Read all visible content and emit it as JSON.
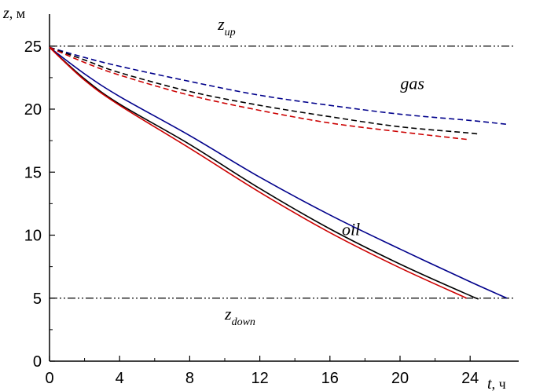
{
  "chart_data": {
    "type": "line",
    "xlabel": "t",
    "xunit": ", ч",
    "ylabel": "z",
    "yunit": ", м",
    "xlim": [
      0,
      26
    ],
    "ylim": [
      0,
      27
    ],
    "xticks": [
      0,
      4,
      8,
      12,
      16,
      20,
      24
    ],
    "yticks": [
      0,
      5,
      10,
      15,
      20,
      25
    ],
    "grid": false,
    "annotations": [
      {
        "text": "gas",
        "x": 20.7,
        "y": 21.6
      },
      {
        "text": "oil",
        "x": 17.2,
        "y": 10.0
      }
    ],
    "reference_lines": [
      {
        "main": "z",
        "sub": "up",
        "y": 25,
        "style": "dash-dot-dot",
        "color": "#000000",
        "label_x": 9.6,
        "label_y": 26.3
      },
      {
        "main": "z",
        "sub": "down",
        "y": 5,
        "style": "dash-dot-dot",
        "color": "#000000",
        "label_x": 10.0,
        "label_y": 3.3
      }
    ],
    "series": [
      {
        "group": "oil",
        "color": "#00008b",
        "dash": "solid",
        "x": [
          0,
          2,
          4,
          8,
          12,
          16,
          20,
          24,
          26.1
        ],
        "y": [
          24.9,
          22.8,
          21.0,
          17.9,
          14.6,
          11.6,
          8.9,
          6.3,
          5.0
        ]
      },
      {
        "group": "oil",
        "color": "#000000",
        "dash": "solid",
        "x": [
          0,
          2,
          4,
          8,
          12,
          16,
          20,
          24,
          24.4
        ],
        "y": [
          24.9,
          22.4,
          20.4,
          17.2,
          13.7,
          10.5,
          7.7,
          5.2,
          5.0
        ]
      },
      {
        "group": "oil",
        "color": "#cc0000",
        "dash": "solid",
        "x": [
          0,
          2,
          4,
          8,
          12,
          16,
          20,
          23.8
        ],
        "y": [
          24.9,
          22.3,
          20.3,
          16.9,
          13.4,
          10.2,
          7.4,
          5.0
        ]
      },
      {
        "group": "gas",
        "color": "#00008b",
        "dash": "dashed",
        "x": [
          0,
          2,
          4,
          8,
          12,
          16,
          20,
          24,
          26.1
        ],
        "y": [
          24.9,
          24.1,
          23.4,
          22.2,
          21.1,
          20.3,
          19.6,
          19.1,
          18.8
        ]
      },
      {
        "group": "gas",
        "color": "#000000",
        "dash": "dashed",
        "x": [
          0,
          2,
          4,
          8,
          12,
          16,
          20,
          24,
          24.4
        ],
        "y": [
          24.9,
          23.9,
          22.9,
          21.4,
          20.3,
          19.4,
          18.6,
          18.1,
          18.0
        ]
      },
      {
        "group": "gas",
        "color": "#cc0000",
        "dash": "dashed",
        "x": [
          0,
          2,
          4,
          8,
          12,
          16,
          20,
          23.8
        ],
        "y": [
          24.9,
          23.7,
          22.7,
          21.1,
          19.9,
          18.9,
          18.2,
          17.6
        ]
      }
    ]
  }
}
